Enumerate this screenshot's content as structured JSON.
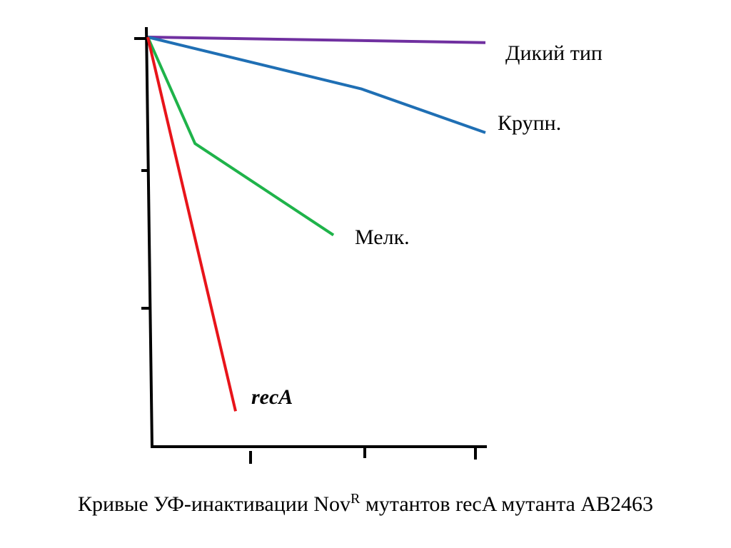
{
  "caption": {
    "part1": "Кривые УФ-инактивации  Nov",
    "sup": "R",
    "part2": "  мутантов recA мутанта AB2463"
  },
  "chart_data": {
    "type": "line",
    "title": "",
    "xlabel": "",
    "ylabel": "",
    "x_ticks": 3,
    "y_ticks": 3,
    "xlim": [
      0,
      3
    ],
    "ylim": [
      0,
      3
    ],
    "series": [
      {
        "name": "Дикий тип",
        "color": "#7030a0",
        "points": [
          [
            0,
            3.0
          ],
          [
            3.0,
            2.96
          ]
        ]
      },
      {
        "name": "Крупн.",
        "color": "#1f6fb4",
        "points": [
          [
            0,
            3.0
          ],
          [
            1.9,
            2.62
          ],
          [
            3.0,
            2.3
          ]
        ]
      },
      {
        "name": "Мелк.",
        "color": "#1fb34a",
        "points": [
          [
            0,
            3.0
          ],
          [
            0.42,
            2.22
          ],
          [
            1.65,
            1.55
          ]
        ]
      },
      {
        "name": "recA",
        "italic": true,
        "color": "#e8141a",
        "points": [
          [
            0,
            3.0
          ],
          [
            0.78,
            0.26
          ]
        ]
      }
    ]
  }
}
